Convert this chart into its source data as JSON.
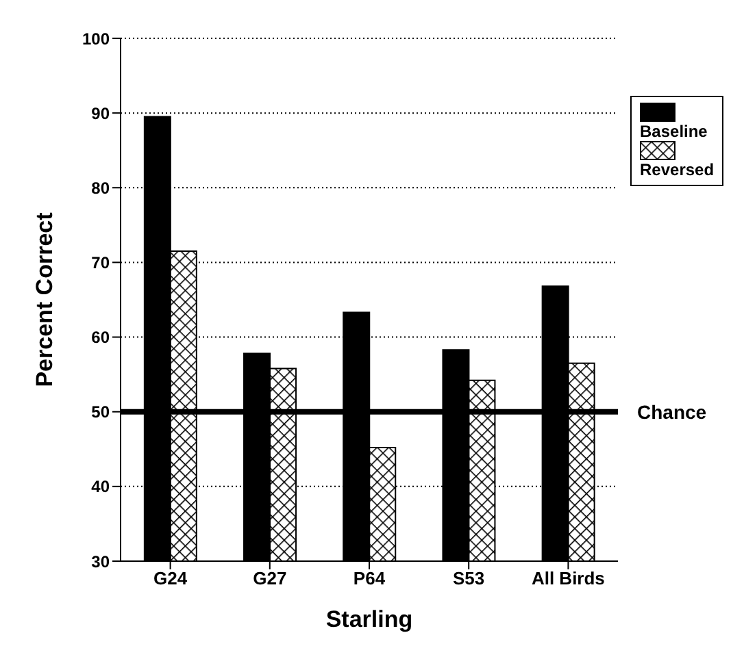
{
  "chart_data": {
    "type": "bar",
    "xlabel": "Starling",
    "ylabel": "Percent Correct",
    "categories": [
      "G24",
      "G27",
      "P64",
      "S53",
      "All Birds"
    ],
    "series": [
      {
        "name": "Baseline",
        "color": "#000000",
        "values": [
          89.5,
          57.8,
          63.3,
          58.3,
          66.8
        ]
      },
      {
        "name": "Reversed",
        "color": "#000000",
        "values": [
          71.5,
          55.8,
          45.2,
          54.2,
          56.5
        ]
      }
    ],
    "ylim": [
      30,
      100
    ],
    "yticks": [
      30,
      40,
      50,
      60,
      70,
      80,
      90,
      100
    ],
    "grid": "y",
    "legend": "top right",
    "ref_lines": [
      {
        "axis": "y",
        "value": 50,
        "label": "Chance",
        "color": "#000000"
      }
    ]
  }
}
